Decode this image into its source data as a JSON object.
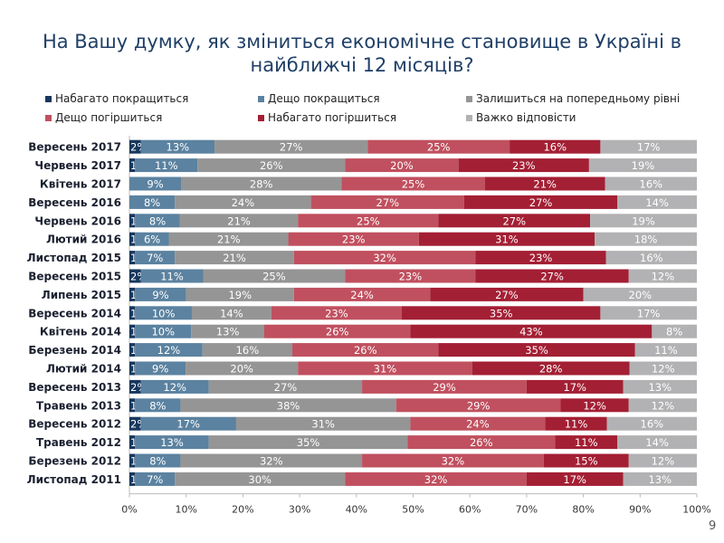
{
  "title": "На Вашу думку, як зміниться економічне становище в Україні в найближчі 12 місяців?",
  "page_number": "9",
  "chart_data": {
    "type": "bar",
    "orientation": "horizontal",
    "stacked": "percent",
    "title": "На Вашу думку, як зміниться економічне становище в Україні в найближчі 12 місяців?",
    "xlim": [
      0,
      100
    ],
    "x_ticks": [
      "0%",
      "10%",
      "20%",
      "30%",
      "40%",
      "50%",
      "60%",
      "70%",
      "80%",
      "90%",
      "100%"
    ],
    "grid": false,
    "legend_position": "top",
    "categories": [
      "Вересень 2017",
      "Червень 2017",
      "Квітень 2017",
      "Вересень 2016",
      "Червень 2016",
      "Лютий 2016",
      "Листопад 2015",
      "Вересень 2015",
      "Липень 2015",
      "Вересень 2014",
      "Квітень 2014",
      "Березень 2014",
      "Лютий 2014",
      "Вересень 2013",
      "Травень 2013",
      "Вересень 2012",
      "Травень 2012",
      "Березень 2012",
      "Листопад 2011"
    ],
    "series": [
      {
        "name": "Набагато покращиться",
        "color": "#17375e",
        "values": [
          2,
          1,
          0,
          0,
          1,
          1,
          1,
          2,
          1,
          1,
          1,
          1,
          1,
          2,
          1,
          2,
          1,
          1,
          1
        ]
      },
      {
        "name": "Дещо покращиться",
        "color": "#5b82a0",
        "values": [
          13,
          11,
          9,
          8,
          8,
          6,
          7,
          11,
          9,
          10,
          10,
          12,
          9,
          12,
          8,
          17,
          13,
          8,
          7
        ]
      },
      {
        "name": "Залишиться на попередньому рівні",
        "color": "#959595",
        "values": [
          27,
          26,
          28,
          24,
          21,
          21,
          21,
          25,
          19,
          14,
          13,
          16,
          20,
          27,
          38,
          31,
          35,
          32,
          30
        ]
      },
      {
        "name": "Дещо погіршиться",
        "color": "#c0505f",
        "values": [
          25,
          20,
          25,
          27,
          25,
          23,
          32,
          23,
          24,
          23,
          26,
          26,
          31,
          29,
          29,
          24,
          26,
          32,
          32
        ]
      },
      {
        "name": "Набагато погіршиться",
        "color": "#a31f34",
        "values": [
          16,
          23,
          21,
          27,
          27,
          31,
          23,
          27,
          27,
          35,
          43,
          35,
          28,
          17,
          12,
          11,
          11,
          15,
          17
        ]
      },
      {
        "name": "Важко відповісти",
        "color": "#b2b2b4",
        "values": [
          17,
          19,
          16,
          14,
          19,
          18,
          16,
          12,
          20,
          17,
          8,
          11,
          12,
          13,
          12,
          16,
          14,
          12,
          13
        ]
      }
    ]
  }
}
